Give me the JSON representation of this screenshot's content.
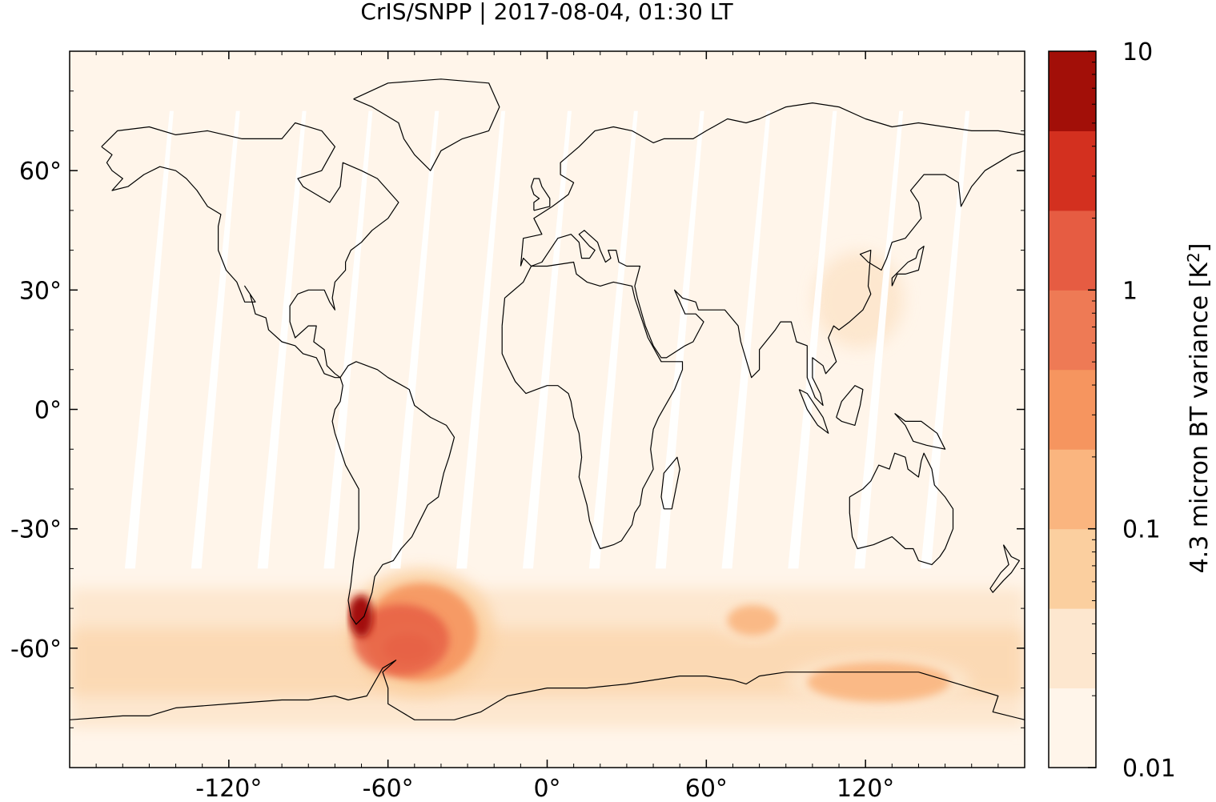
{
  "chart_data": {
    "type": "heatmap",
    "title": "CrIS/SNPP | 2017-08-04, 01:30 LT",
    "map_projection": "equirectangular",
    "xlim": [
      -180,
      180
    ],
    "ylim": [
      -90,
      90
    ],
    "x_ticks": [
      {
        "value": -120,
        "label": "-120°"
      },
      {
        "value": -60,
        "label": "-60°"
      },
      {
        "value": 0,
        "label": "0°"
      },
      {
        "value": 60,
        "label": "60°"
      },
      {
        "value": 120,
        "label": "120°"
      }
    ],
    "y_ticks": [
      {
        "value": 60,
        "label": "60°"
      },
      {
        "value": 30,
        "label": "30°"
      },
      {
        "value": 0,
        "label": "0°"
      },
      {
        "value": -30,
        "label": "-30°"
      },
      {
        "value": -60,
        "label": "-60°"
      }
    ],
    "colorbar": {
      "label": "4.3 micron BT variance [K",
      "label_superscript": "2",
      "label_close": "]",
      "scale": "log",
      "range": [
        0.01,
        10
      ],
      "tick_labels": [
        {
          "value": 10,
          "label": "10"
        },
        {
          "value": 1,
          "label": "1"
        },
        {
          "value": 0.1,
          "label": "0.1"
        },
        {
          "value": 0.01,
          "label": "0.01"
        }
      ],
      "levels": [
        "#fff5eb",
        "#fee6ce",
        "#fdd0a2",
        "#fdae6b",
        "#fd8d3c",
        "#f16913",
        "#e6550d",
        "#d94801",
        "#a63603",
        "#7f2704"
      ],
      "level_colors": [
        "#fff5ea",
        "#fde7cf",
        "#fbcf9f",
        "#fab57f",
        "#f6955f",
        "#ee7a55",
        "#e65c42",
        "#d3301f",
        "#a20f08"
      ]
    },
    "regions": [
      {
        "name": "background",
        "lon": [
          -180,
          180
        ],
        "lat": [
          -90,
          90
        ],
        "level": 0
      },
      {
        "name": "southern-ocean-belt",
        "lon": [
          -180,
          180
        ],
        "lat": [
          -80,
          -45
        ],
        "level": 1
      },
      {
        "name": "drake-passage",
        "lon": [
          -75,
          -20
        ],
        "lat": [
          -72,
          -40
        ],
        "level": 4
      },
      {
        "name": "patagonia-peak",
        "lon": [
          -74,
          -68
        ],
        "lat": [
          -56,
          -47
        ],
        "level": 8
      },
      {
        "name": "scotia-sea",
        "lon": [
          -65,
          -40
        ],
        "lat": [
          -65,
          -55
        ],
        "level": 5
      },
      {
        "name": "south-indian-ocean",
        "lon": [
          65,
          90
        ],
        "lat": [
          -58,
          -48
        ],
        "level": 3
      },
      {
        "name": "wilkes-land",
        "lon": [
          90,
          160
        ],
        "lat": [
          -75,
          -62
        ],
        "level": 3
      },
      {
        "name": "east-asia",
        "lon": [
          100,
          135
        ],
        "lat": [
          15,
          40
        ],
        "level": 1
      }
    ]
  }
}
